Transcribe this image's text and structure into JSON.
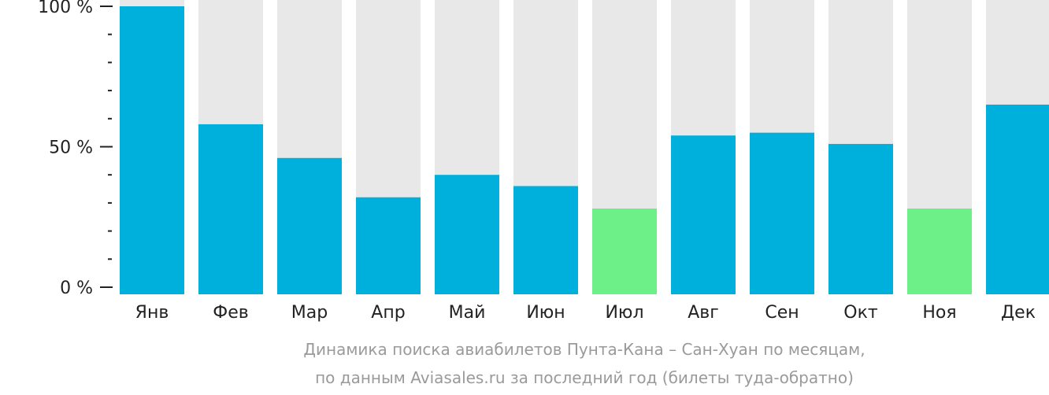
{
  "chart_data": {
    "type": "bar",
    "categories": [
      "Янв",
      "Фев",
      "Мар",
      "Апр",
      "Май",
      "Июн",
      "Июл",
      "Авг",
      "Сен",
      "Окт",
      "Ноя",
      "Дек"
    ],
    "values": [
      100,
      58,
      46,
      32,
      40,
      36,
      28,
      54,
      55,
      51,
      28,
      65
    ],
    "ylim": [
      0,
      100
    ],
    "y_ticks": [
      {
        "value": 0,
        "label": "0 %"
      },
      {
        "value": 50,
        "label": "50 %"
      },
      {
        "value": 100,
        "label": "100 %"
      }
    ],
    "minor_tick_step": 10,
    "colors": {
      "bar": "#00b0dc",
      "bar_low": "#6cf087",
      "background_bar": "#e8e8e8",
      "axis": "#222222",
      "caption": "#9a9a9a"
    },
    "low_categories": [
      "Июл",
      "Ноя"
    ],
    "caption_lines": [
      "Динамика поиска авиабилетов Пунта-Кана – Сан-Хуан по месяцам,",
      "по данным Aviasales.ru за последний год (билеты туда-обратно)"
    ]
  }
}
